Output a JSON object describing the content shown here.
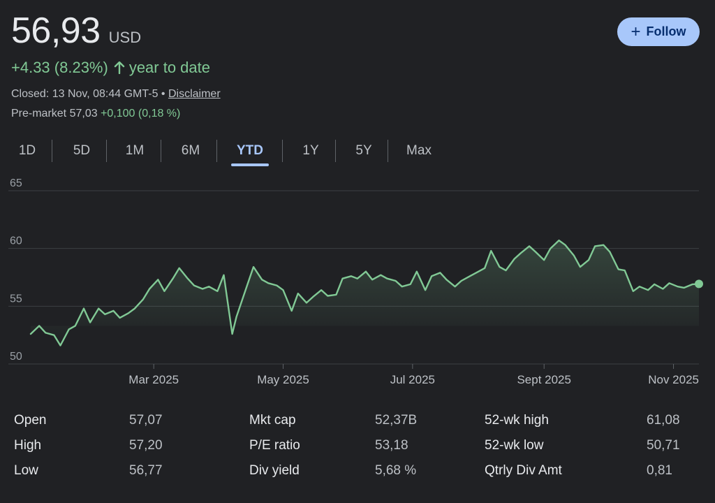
{
  "quote": {
    "price": "56,93",
    "currency": "USD",
    "change_text": "+4.33 (8.23%)",
    "period_text": "year to date",
    "closed_text": "Closed: 13 Nov, 08:44 GMT-5 •",
    "disclaimer": "Disclaimer",
    "premarket_label": "Pre-market 57,03",
    "premarket_change": "+0,100 (0,18 %)"
  },
  "follow": {
    "label": "Follow"
  },
  "colors": {
    "up": "#81c995",
    "accent": "#a8c7fa",
    "background": "#202124"
  },
  "icons": {
    "arrow": "arrow-up-icon",
    "plus": "plus-icon"
  },
  "tabs": [
    {
      "label": "1D"
    },
    {
      "label": "5D"
    },
    {
      "label": "1M"
    },
    {
      "label": "6M"
    },
    {
      "label": "YTD",
      "active": true
    },
    {
      "label": "1Y"
    },
    {
      "label": "5Y"
    },
    {
      "label": "Max"
    }
  ],
  "chart_data": {
    "type": "area",
    "x_ticks": [
      "Mar 2025",
      "May 2025",
      "Jul 2025",
      "Sept 2025",
      "Nov 2025"
    ],
    "x_tick_dates": [
      "2025-03-01",
      "2025-05-01",
      "2025-07-01",
      "2025-09-01",
      "2025-11-01"
    ],
    "y_ticks": [
      50,
      55,
      60,
      65
    ],
    "ylim": [
      50,
      65
    ],
    "xlim": [
      "2025-01-02",
      "2025-11-13"
    ],
    "grid": true,
    "line_color": "#81c995",
    "series": [
      {
        "x": [
          "2025-01-02",
          "2025-01-06",
          "2025-01-09",
          "2025-01-13",
          "2025-01-16",
          "2025-01-20",
          "2025-01-23",
          "2025-01-27",
          "2025-01-30",
          "2025-02-03",
          "2025-02-06",
          "2025-02-10",
          "2025-02-13",
          "2025-02-17",
          "2025-02-20",
          "2025-02-24",
          "2025-02-27",
          "2025-03-03",
          "2025-03-06",
          "2025-03-10",
          "2025-03-13",
          "2025-03-17",
          "2025-03-20",
          "2025-03-24",
          "2025-03-27",
          "2025-03-31",
          "2025-04-03",
          "2025-04-07",
          "2025-04-09",
          "2025-04-14",
          "2025-04-17",
          "2025-04-21",
          "2025-04-24",
          "2025-04-28",
          "2025-05-01",
          "2025-05-05",
          "2025-05-08",
          "2025-05-12",
          "2025-05-15",
          "2025-05-19",
          "2025-05-22",
          "2025-05-26",
          "2025-05-29",
          "2025-06-02",
          "2025-06-05",
          "2025-06-09",
          "2025-06-12",
          "2025-06-16",
          "2025-06-19",
          "2025-06-23",
          "2025-06-26",
          "2025-06-30",
          "2025-07-03",
          "2025-07-07",
          "2025-07-10",
          "2025-07-14",
          "2025-07-17",
          "2025-07-21",
          "2025-07-24",
          "2025-07-28",
          "2025-07-31",
          "2025-08-04",
          "2025-08-07",
          "2025-08-11",
          "2025-08-14",
          "2025-08-18",
          "2025-08-21",
          "2025-08-25",
          "2025-08-28",
          "2025-09-01",
          "2025-09-04",
          "2025-09-08",
          "2025-09-11",
          "2025-09-15",
          "2025-09-18",
          "2025-09-22",
          "2025-09-25",
          "2025-09-29",
          "2025-10-02",
          "2025-10-06",
          "2025-10-09",
          "2025-10-13",
          "2025-10-16",
          "2025-10-20",
          "2025-10-23",
          "2025-10-27",
          "2025-10-30",
          "2025-11-03",
          "2025-11-06",
          "2025-11-10",
          "2025-11-13"
        ],
        "y": [
          52.6,
          53.3,
          52.7,
          52.5,
          51.6,
          53.0,
          53.3,
          54.8,
          53.6,
          54.8,
          54.3,
          54.6,
          54.0,
          54.4,
          54.8,
          55.6,
          56.5,
          57.3,
          56.3,
          57.4,
          58.3,
          57.4,
          56.8,
          56.5,
          56.7,
          56.3,
          57.7,
          52.6,
          54.1,
          56.8,
          58.4,
          57.3,
          57.0,
          56.8,
          56.4,
          54.6,
          56.1,
          55.3,
          55.8,
          56.4,
          55.9,
          56.0,
          57.4,
          57.6,
          57.4,
          58.0,
          57.3,
          57.7,
          57.4,
          57.2,
          56.7,
          56.9,
          58.0,
          56.4,
          57.6,
          57.9,
          57.3,
          56.7,
          57.2,
          57.6,
          57.9,
          58.3,
          59.8,
          58.4,
          58.1,
          59.1,
          59.6,
          60.2,
          59.7,
          59.0,
          60.0,
          60.7,
          60.3,
          59.4,
          58.4,
          59.0,
          60.2,
          60.3,
          59.7,
          58.2,
          58.1,
          56.3,
          56.7,
          56.4,
          56.9,
          56.5,
          57.0,
          56.7,
          56.6,
          56.9,
          56.93
        ]
      }
    ]
  },
  "stats": [
    {
      "label": "Open",
      "value": "57,07"
    },
    {
      "label": "High",
      "value": "57,20"
    },
    {
      "label": "Low",
      "value": "56,77"
    },
    {
      "label": "Mkt cap",
      "value": "52,37B"
    },
    {
      "label": "P/E ratio",
      "value": "53,18"
    },
    {
      "label": "Div yield",
      "value": "5,68 %"
    },
    {
      "label": "52-wk high",
      "value": "61,08"
    },
    {
      "label": "52-wk low",
      "value": "50,71"
    },
    {
      "label": "Qtrly Div Amt",
      "value": "0,81"
    }
  ]
}
